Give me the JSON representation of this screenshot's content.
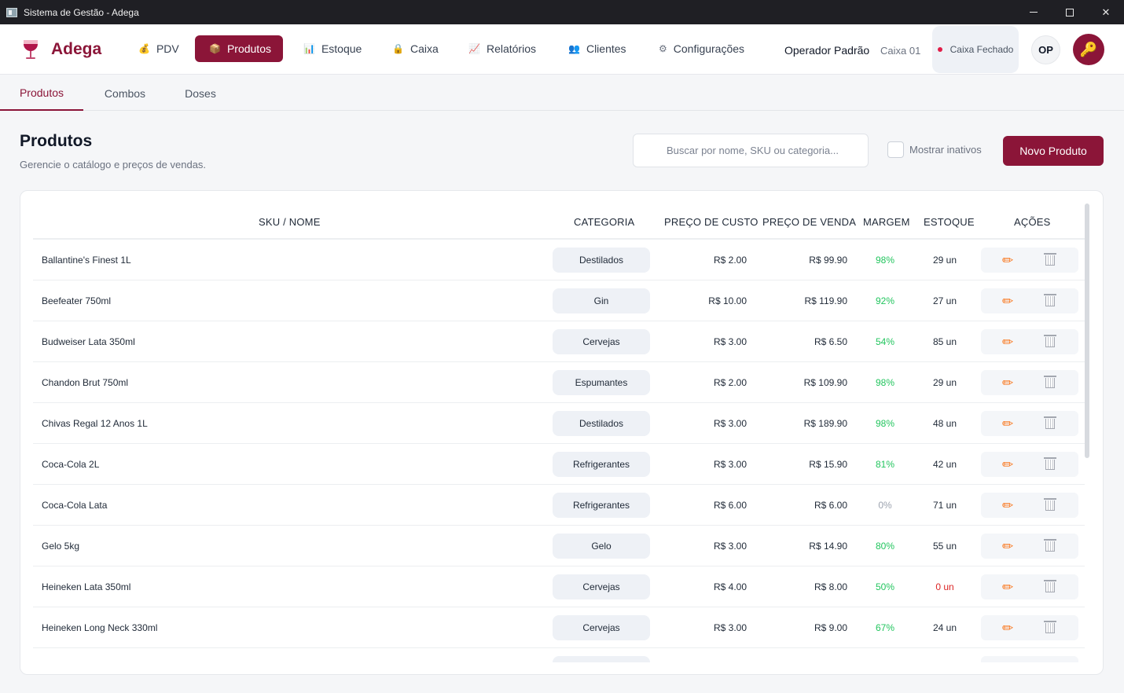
{
  "window": {
    "title": "Sistema de Gestão - Adega"
  },
  "brand": {
    "name": "Adega"
  },
  "nav": [
    {
      "id": "pdv",
      "label": "PDV",
      "icon": "💰"
    },
    {
      "id": "produtos",
      "label": "Produtos",
      "icon": "📦"
    },
    {
      "id": "estoque",
      "label": "Estoque",
      "icon": "📊"
    },
    {
      "id": "caixa",
      "label": "Caixa",
      "icon": "🔒"
    },
    {
      "id": "relatorios",
      "label": "Relatórios",
      "icon": "📈"
    },
    {
      "id": "clientes",
      "label": "Clientes",
      "icon": "👥"
    },
    {
      "id": "config",
      "label": "Configurações",
      "icon": "⚙"
    }
  ],
  "header": {
    "operator": "Operador Padrão",
    "caixa_num": "Caixa 01",
    "caixa_status": "Caixa Fechado",
    "avatar_initials": "OP"
  },
  "tabs": [
    {
      "label": "Produtos"
    },
    {
      "label": "Combos"
    },
    {
      "label": "Doses"
    }
  ],
  "page": {
    "title": "Produtos",
    "subtitle": "Gerencie o catálogo e preços de vendas.",
    "search_placeholder": "Buscar por nome, SKU ou categoria...",
    "show_inactive": "Mostrar inativos",
    "new_product": "Novo Produto"
  },
  "table": {
    "columns": {
      "name": "SKU / NOME",
      "category": "CATEGORIA",
      "cost": "PREÇO DE CUSTO",
      "sale": "PREÇO DE VENDA",
      "margin": "MARGEM",
      "stock": "ESTOQUE",
      "actions": "AÇÕES"
    },
    "rows": [
      {
        "name": "Ballantine's Finest 1L",
        "category": "Destilados",
        "cost": "R$ 2.00",
        "sale": "R$ 99.90",
        "margin": "98%",
        "margin_color": "#22c55e",
        "stock": "29 un",
        "stock_color": "#1f2937"
      },
      {
        "name": "Beefeater 750ml",
        "category": "Gin",
        "cost": "R$ 10.00",
        "sale": "R$ 119.90",
        "margin": "92%",
        "margin_color": "#22c55e",
        "stock": "27 un",
        "stock_color": "#1f2937"
      },
      {
        "name": "Budweiser Lata 350ml",
        "category": "Cervejas",
        "cost": "R$ 3.00",
        "sale": "R$ 6.50",
        "margin": "54%",
        "margin_color": "#22c55e",
        "stock": "85 un",
        "stock_color": "#1f2937"
      },
      {
        "name": "Chandon Brut 750ml",
        "category": "Espumantes",
        "cost": "R$ 2.00",
        "sale": "R$ 109.90",
        "margin": "98%",
        "margin_color": "#22c55e",
        "stock": "29 un",
        "stock_color": "#1f2937"
      },
      {
        "name": "Chivas Regal 12 Anos 1L",
        "category": "Destilados",
        "cost": "R$ 3.00",
        "sale": "R$ 189.90",
        "margin": "98%",
        "margin_color": "#22c55e",
        "stock": "48 un",
        "stock_color": "#1f2937"
      },
      {
        "name": "Coca-Cola 2L",
        "category": "Refrigerantes",
        "cost": "R$ 3.00",
        "sale": "R$ 15.90",
        "margin": "81%",
        "margin_color": "#22c55e",
        "stock": "42 un",
        "stock_color": "#1f2937"
      },
      {
        "name": "Coca-Cola Lata",
        "category": "Refrigerantes",
        "cost": "R$ 6.00",
        "sale": "R$ 6.00",
        "margin": "0%",
        "margin_color": "#9ca3af",
        "stock": "71 un",
        "stock_color": "#1f2937"
      },
      {
        "name": "Gelo 5kg",
        "category": "Gelo",
        "cost": "R$ 3.00",
        "sale": "R$ 14.90",
        "margin": "80%",
        "margin_color": "#22c55e",
        "stock": "55 un",
        "stock_color": "#1f2937"
      },
      {
        "name": "Heineken Lata 350ml",
        "category": "Cervejas",
        "cost": "R$ 4.00",
        "sale": "R$ 8.00",
        "margin": "50%",
        "margin_color": "#22c55e",
        "stock": "0 un",
        "stock_color": "#dc2626"
      },
      {
        "name": "Heineken Long Neck 330ml",
        "category": "Cervejas",
        "cost": "R$ 3.00",
        "sale": "R$ 9.00",
        "margin": "67%",
        "margin_color": "#22c55e",
        "stock": "24 un",
        "stock_color": "#1f2937"
      }
    ]
  }
}
